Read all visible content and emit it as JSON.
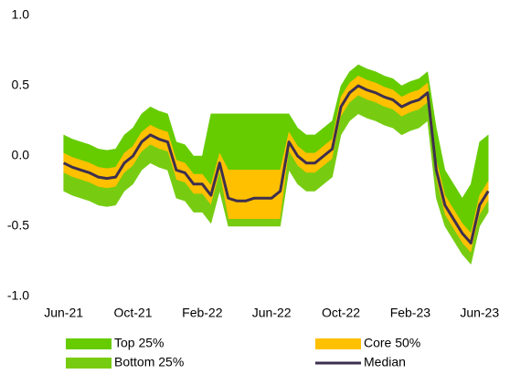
{
  "chart_data": {
    "type": "band",
    "x": [
      0,
      0.5,
      1,
      1.5,
      2,
      2.5,
      3,
      3.5,
      4,
      4.5,
      5,
      5.5,
      6,
      6.5,
      7,
      7.5,
      8,
      8.5,
      9,
      9.5,
      10,
      10.5,
      11,
      11.5,
      12,
      12.5,
      13,
      13.5,
      14,
      14.5,
      15,
      15.5,
      16,
      16.5,
      17,
      17.5,
      18,
      18.5,
      19,
      19.5,
      20,
      20.5,
      21,
      21.5,
      22,
      22.5,
      23,
      23.5,
      24,
      24.5
    ],
    "xlim": [
      -0.35,
      24.7
    ],
    "xticks": [
      {
        "value": 0,
        "label": "Jun-21"
      },
      {
        "value": 4,
        "label": "Oct-21"
      },
      {
        "value": 8,
        "label": "Feb-22"
      },
      {
        "value": 12,
        "label": "Jun-22"
      },
      {
        "value": 16,
        "label": "Oct-22"
      },
      {
        "value": 20,
        "label": "Feb-23"
      },
      {
        "value": 24,
        "label": "Jun-23"
      }
    ],
    "ylim": [
      -1.0,
      1.0
    ],
    "yticks": [
      {
        "value": 1.0,
        "label": "1.0"
      },
      {
        "value": 0.5,
        "label": "0.5"
      },
      {
        "value": 0.0,
        "label": "0.0"
      },
      {
        "value": -0.5,
        "label": "-0.5"
      },
      {
        "value": -1.0,
        "label": "-1.0"
      }
    ],
    "legend": "bottom",
    "series": [
      {
        "name": "Top 25%",
        "color": "#66cc00",
        "high": [
          0.15,
          0.12,
          0.1,
          0.08,
          0.05,
          0.04,
          0.05,
          0.15,
          0.2,
          0.3,
          0.35,
          0.32,
          0.3,
          0.1,
          0.08,
          0.0,
          0.0,
          0.3,
          0.3,
          0.3,
          0.3,
          0.3,
          0.3,
          0.3,
          0.3,
          0.3,
          0.3,
          0.2,
          0.15,
          0.15,
          0.2,
          0.25,
          0.5,
          0.6,
          0.65,
          0.62,
          0.6,
          0.57,
          0.55,
          0.5,
          0.53,
          0.55,
          0.6,
          0.2,
          -0.1,
          -0.2,
          -0.3,
          -0.2,
          0.1,
          0.15
        ],
        "low": [
          0.02,
          -0.01,
          -0.03,
          -0.05,
          -0.08,
          -0.09,
          -0.08,
          0.02,
          0.07,
          0.17,
          0.22,
          0.19,
          0.17,
          -0.03,
          -0.05,
          -0.13,
          -0.13,
          -0.21,
          0.02,
          -0.1,
          -0.1,
          -0.1,
          -0.1,
          -0.1,
          -0.1,
          -0.1,
          0.17,
          0.07,
          0.02,
          0.02,
          0.07,
          0.12,
          0.42,
          0.52,
          0.57,
          0.54,
          0.52,
          0.49,
          0.47,
          0.42,
          0.45,
          0.47,
          0.52,
          -0.03,
          -0.28,
          -0.38,
          -0.48,
          -0.55,
          -0.28,
          -0.18
        ]
      },
      {
        "name": "Core 50%",
        "color": "#ffc000",
        "high": [
          0.02,
          -0.01,
          -0.03,
          -0.05,
          -0.08,
          -0.09,
          -0.08,
          0.02,
          0.07,
          0.17,
          0.22,
          0.19,
          0.17,
          -0.03,
          -0.05,
          -0.13,
          -0.13,
          -0.21,
          0.02,
          -0.1,
          -0.1,
          -0.1,
          -0.1,
          -0.1,
          -0.1,
          -0.1,
          0.17,
          0.07,
          0.02,
          0.02,
          0.07,
          0.12,
          0.42,
          0.52,
          0.57,
          0.54,
          0.52,
          0.49,
          0.47,
          0.42,
          0.45,
          0.47,
          0.52,
          -0.03,
          -0.28,
          -0.38,
          -0.48,
          -0.55,
          -0.28,
          -0.18
        ],
        "low": [
          -0.12,
          -0.15,
          -0.17,
          -0.19,
          -0.22,
          -0.23,
          -0.22,
          -0.12,
          -0.07,
          0.03,
          0.08,
          0.05,
          0.03,
          -0.17,
          -0.19,
          -0.27,
          -0.27,
          -0.35,
          -0.12,
          -0.45,
          -0.45,
          -0.45,
          -0.45,
          -0.45,
          -0.45,
          -0.45,
          0.03,
          -0.07,
          -0.12,
          -0.12,
          -0.07,
          -0.02,
          0.28,
          0.38,
          0.43,
          0.4,
          0.38,
          0.35,
          0.33,
          0.28,
          0.31,
          0.33,
          0.38,
          -0.17,
          -0.42,
          -0.52,
          -0.62,
          -0.69,
          -0.42,
          -0.32
        ]
      },
      {
        "name": "Bottom 25%",
        "color": "#77cc11",
        "high": [
          -0.12,
          -0.15,
          -0.17,
          -0.19,
          -0.22,
          -0.23,
          -0.22,
          -0.12,
          -0.07,
          0.03,
          0.08,
          0.05,
          0.03,
          -0.17,
          -0.19,
          -0.27,
          -0.27,
          -0.35,
          -0.12,
          -0.45,
          -0.45,
          -0.45,
          -0.45,
          -0.45,
          -0.45,
          -0.45,
          0.03,
          -0.07,
          -0.12,
          -0.12,
          -0.07,
          -0.02,
          0.28,
          0.38,
          0.43,
          0.4,
          0.38,
          0.35,
          0.33,
          0.28,
          0.31,
          0.33,
          0.38,
          -0.17,
          -0.42,
          -0.52,
          -0.62,
          -0.69,
          -0.42,
          -0.32
        ],
        "low": [
          -0.25,
          -0.28,
          -0.3,
          -0.32,
          -0.35,
          -0.36,
          -0.35,
          -0.25,
          -0.2,
          -0.1,
          -0.05,
          -0.08,
          -0.1,
          -0.3,
          -0.32,
          -0.4,
          -0.4,
          -0.48,
          -0.25,
          -0.5,
          -0.5,
          -0.5,
          -0.5,
          -0.5,
          -0.5,
          -0.5,
          -0.1,
          -0.2,
          -0.25,
          -0.25,
          -0.2,
          -0.15,
          0.15,
          0.25,
          0.3,
          0.27,
          0.25,
          0.22,
          0.2,
          0.15,
          0.18,
          0.2,
          0.25,
          -0.3,
          -0.5,
          -0.6,
          -0.7,
          -0.77,
          -0.5,
          -0.4
        ]
      },
      {
        "name": "Median",
        "color": "#3d2f4f",
        "values": [
          -0.05,
          -0.08,
          -0.1,
          -0.12,
          -0.15,
          -0.16,
          -0.15,
          -0.05,
          0.0,
          0.1,
          0.15,
          0.12,
          0.1,
          -0.1,
          -0.12,
          -0.2,
          -0.2,
          -0.28,
          -0.05,
          -0.3,
          -0.32,
          -0.32,
          -0.3,
          -0.3,
          -0.3,
          -0.25,
          0.1,
          0.0,
          -0.05,
          -0.05,
          0.0,
          0.05,
          0.35,
          0.45,
          0.5,
          0.47,
          0.45,
          0.42,
          0.4,
          0.35,
          0.38,
          0.4,
          0.45,
          -0.1,
          -0.35,
          -0.45,
          -0.55,
          -0.62,
          -0.35,
          -0.25
        ]
      }
    ]
  }
}
